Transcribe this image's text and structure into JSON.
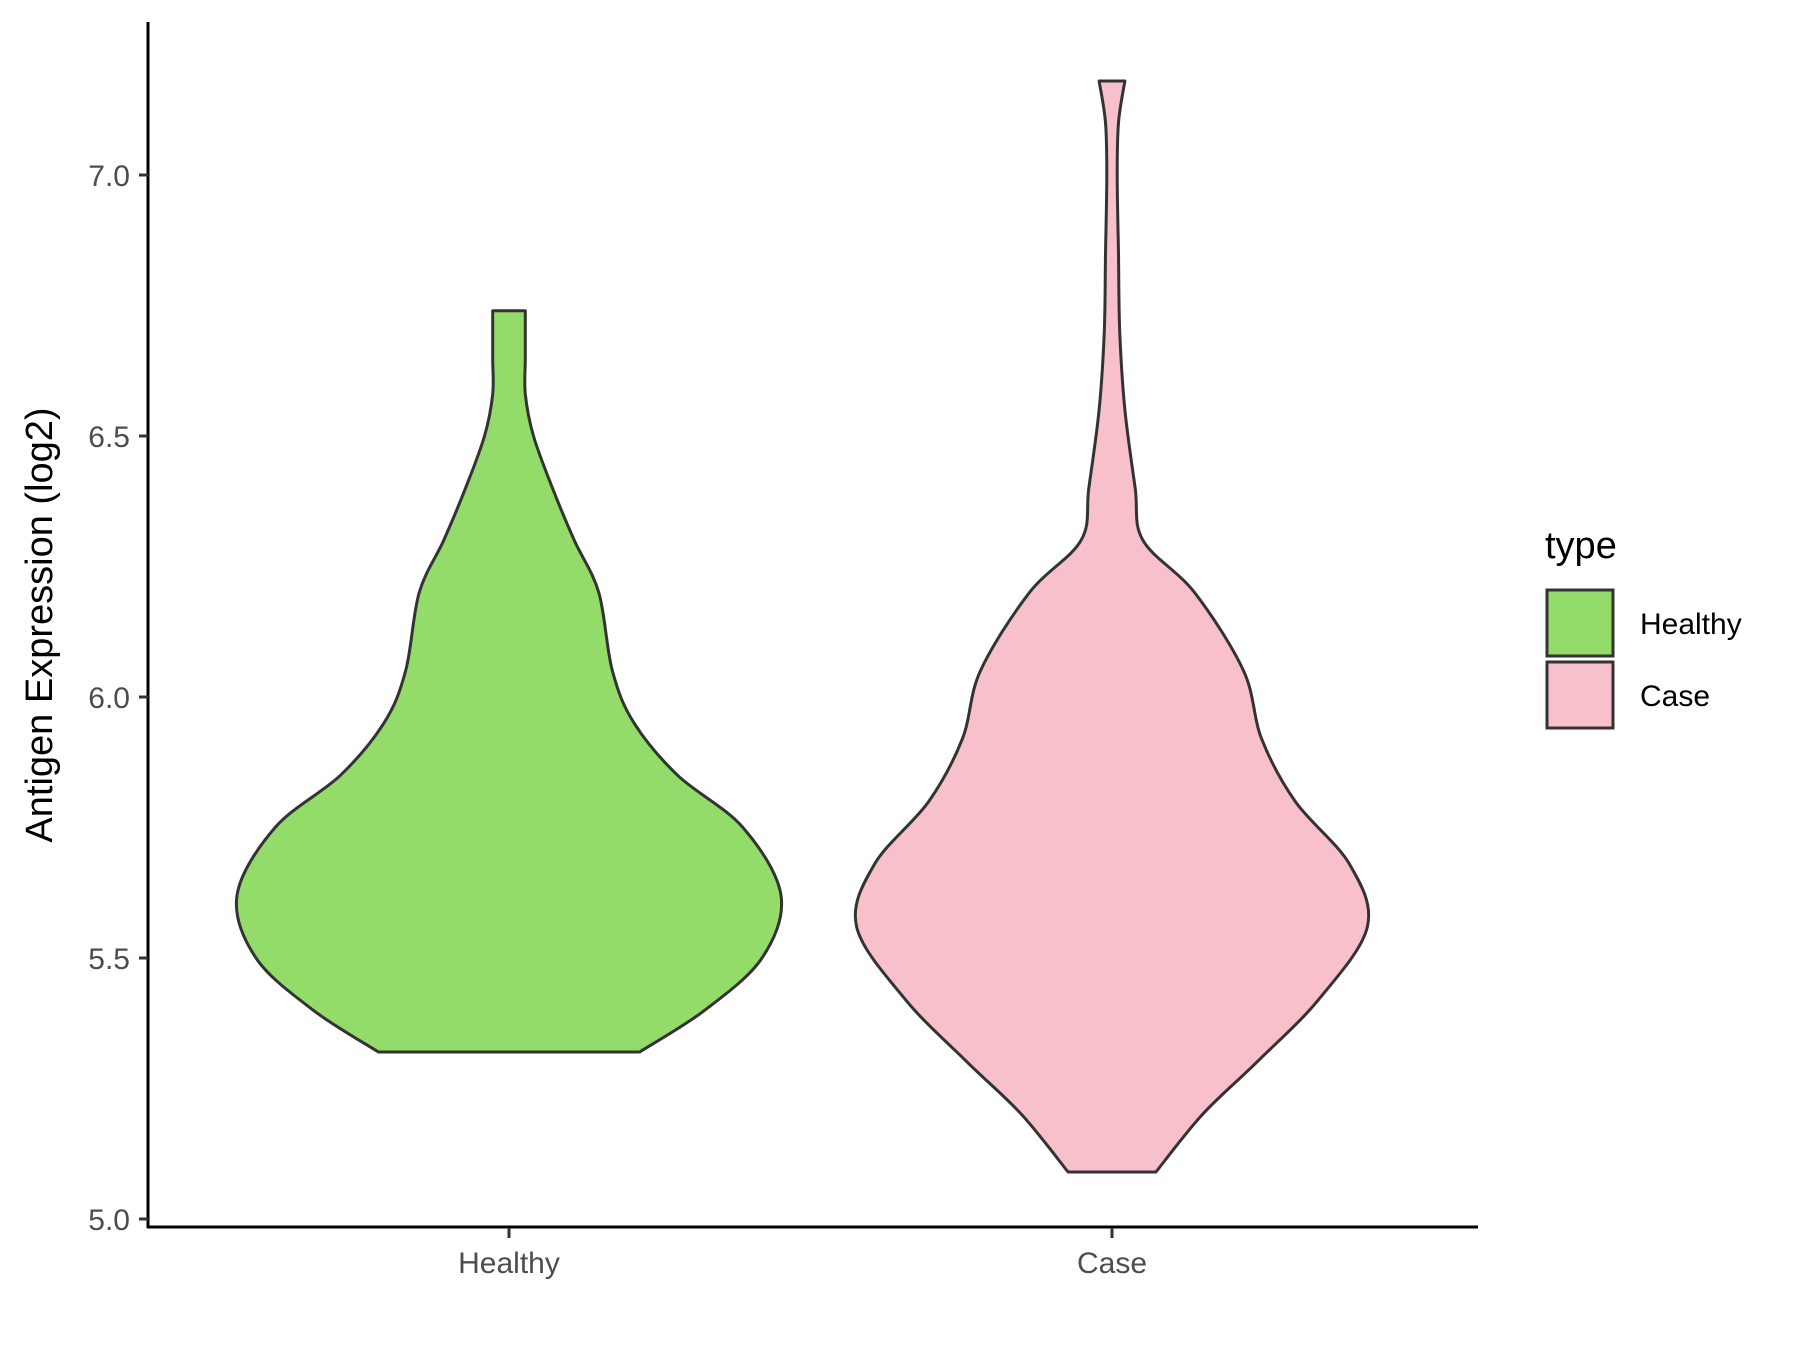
{
  "chart_data": {
    "type": "violin",
    "title": "",
    "xlabel": "",
    "ylabel": "Antigen Expression (log2)",
    "categories": [
      "Healthy",
      "Case"
    ],
    "ylim": [
      5.0,
      7.3
    ],
    "y_ticks": [
      5.0,
      5.5,
      6.0,
      6.5,
      7.0
    ],
    "y_tick_labels": [
      "5.0",
      "5.5",
      "6.0",
      "6.5",
      "7.0"
    ],
    "grid": false,
    "legend": {
      "title": "type",
      "position": "right",
      "entries": [
        {
          "label": "Healthy",
          "color": "#93DC6A"
        },
        {
          "label": "Case",
          "color": "#F8C0CB"
        }
      ]
    },
    "series": [
      {
        "name": "Healthy",
        "color": "#93DC6A",
        "min": 5.32,
        "max": 6.74,
        "density_half_width_fraction": [
          [
            5.32,
            0.48
          ],
          [
            5.4,
            0.72
          ],
          [
            5.5,
            0.93
          ],
          [
            5.62,
            1.0
          ],
          [
            5.75,
            0.86
          ],
          [
            5.85,
            0.62
          ],
          [
            5.95,
            0.46
          ],
          [
            6.05,
            0.38
          ],
          [
            6.2,
            0.33
          ],
          [
            6.3,
            0.24
          ],
          [
            6.4,
            0.16
          ],
          [
            6.5,
            0.09
          ],
          [
            6.58,
            0.06
          ],
          [
            6.65,
            0.06
          ],
          [
            6.74,
            0.06
          ]
        ]
      },
      {
        "name": "Case",
        "color": "#F8C0CB",
        "min": 5.09,
        "max": 7.18,
        "density_half_width_fraction": [
          [
            5.09,
            0.17
          ],
          [
            5.2,
            0.35
          ],
          [
            5.3,
            0.56
          ],
          [
            5.42,
            0.8
          ],
          [
            5.56,
            0.99
          ],
          [
            5.68,
            0.92
          ],
          [
            5.8,
            0.71
          ],
          [
            5.92,
            0.58
          ],
          [
            6.05,
            0.51
          ],
          [
            6.2,
            0.32
          ],
          [
            6.3,
            0.12
          ],
          [
            6.4,
            0.09
          ],
          [
            6.55,
            0.05
          ],
          [
            6.7,
            0.03
          ],
          [
            6.85,
            0.025
          ],
          [
            7.0,
            0.02
          ],
          [
            7.1,
            0.025
          ],
          [
            7.18,
            0.05
          ]
        ]
      }
    ]
  }
}
